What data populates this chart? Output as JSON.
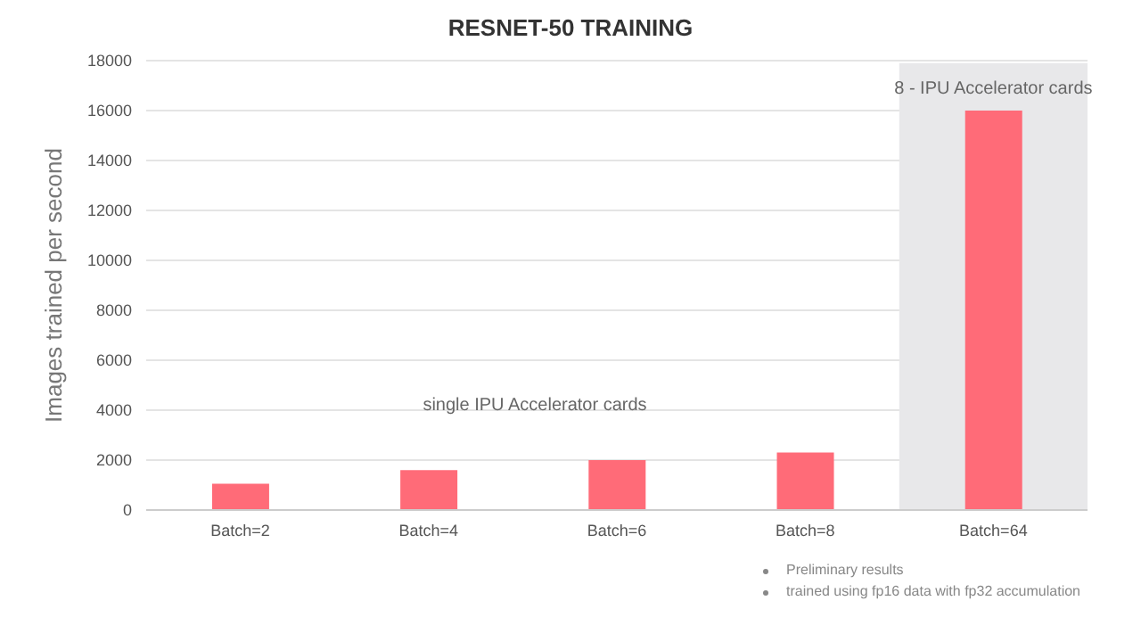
{
  "chart_data": {
    "type": "bar",
    "title": "RESNET-50 TRAINING",
    "ylabel": "Images trained per second",
    "categories": [
      "Batch=2",
      "Batch=4",
      "Batch=6",
      "Batch=8",
      "Batch=64"
    ],
    "series": [
      {
        "color": "#ff6b78",
        "values": [
          1050,
          1600,
          2000,
          2300,
          16000
        ]
      }
    ],
    "ylim": [
      0,
      18000
    ],
    "yticks": [
      0,
      2000,
      4000,
      6000,
      8000,
      10000,
      12000,
      14000,
      16000,
      18000
    ],
    "grid": "y",
    "legend": false,
    "bands": [
      {
        "axis": "x",
        "from": "Batch=64",
        "to": "Batch=64",
        "label": "8 - IPU Accelerator cards",
        "color": "#e8e8ea"
      }
    ],
    "annotations": [
      "single IPU Accelerator cards",
      "Preliminary results",
      "trained using fp16 data with fp32 accumulation"
    ]
  }
}
